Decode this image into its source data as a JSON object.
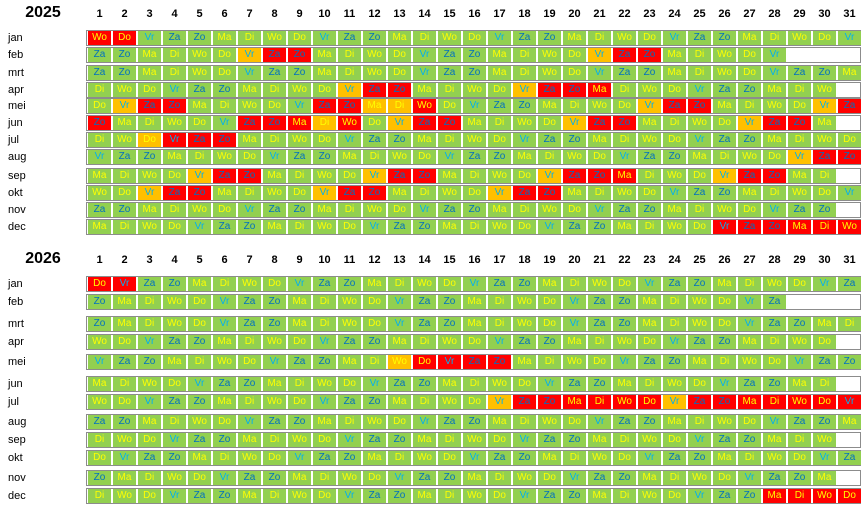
{
  "calendars": [
    {
      "year": "2025",
      "months": [
        {
          "name": "jan",
          "days": [
            "Wo",
            "Do",
            "Vr",
            "Za",
            "Zo",
            "Ma",
            "Di",
            "Wo",
            "Do",
            "Vr",
            "Za",
            "Zo",
            "Ma",
            "Di",
            "Wo",
            "Do",
            "Vr",
            "Za",
            "Zo",
            "Ma",
            "Di",
            "Wo",
            "Do",
            "Vr",
            "Za",
            "Zo",
            "Ma",
            "Di",
            "Wo",
            "Do",
            "Vr"
          ],
          "red": [
            1,
            2
          ],
          "orange": []
        },
        {
          "name": "feb",
          "days": [
            "Za",
            "Zo",
            "Ma",
            "Di",
            "Wo",
            "Do",
            "Vr",
            "Za",
            "Zo",
            "Ma",
            "Di",
            "Wo",
            "Do",
            "Vr",
            "Za",
            "Zo",
            "Ma",
            "Di",
            "Wo",
            "Do",
            "Vr",
            "Za",
            "Zo",
            "Ma",
            "Di",
            "Wo",
            "Do",
            "Vr"
          ],
          "red": [
            8,
            9,
            22,
            23
          ],
          "orange": [
            7,
            21
          ]
        },
        {
          "name": "mrt",
          "days": [
            "Za",
            "Zo",
            "Ma",
            "Di",
            "Wo",
            "Do",
            "Vr",
            "Za",
            "Zo",
            "Ma",
            "Di",
            "Wo",
            "Do",
            "Vr",
            "Za",
            "Zo",
            "Ma",
            "Di",
            "Wo",
            "Do",
            "Vr",
            "Za",
            "Zo",
            "Ma",
            "Di",
            "Wo",
            "Do",
            "Vr",
            "Za",
            "Zo",
            "Ma"
          ],
          "red": [],
          "orange": []
        },
        {
          "name": "apr",
          "days": [
            "Di",
            "Wo",
            "Do",
            "Vr",
            "Za",
            "Zo",
            "Ma",
            "Di",
            "Wo",
            "Do",
            "Vr",
            "Za",
            "Zo",
            "Ma",
            "Di",
            "Wo",
            "Do",
            "Vr",
            "Za",
            "Zo",
            "Ma",
            "Di",
            "Wo",
            "Do",
            "Vr",
            "Za",
            "Zo",
            "Ma",
            "Di",
            "Wo"
          ],
          "red": [
            12,
            13,
            19,
            20,
            21
          ],
          "orange": [
            11,
            18
          ]
        },
        {
          "name": "mei",
          "days": [
            "Do",
            "Vr",
            "Za",
            "Zo",
            "Ma",
            "Di",
            "Wo",
            "Do",
            "Vr",
            "Za",
            "Zo",
            "Ma",
            "Di",
            "Wo",
            "Do",
            "Vr",
            "Za",
            "Zo",
            "Ma",
            "Di",
            "Wo",
            "Do",
            "Vr",
            "Za",
            "Zo",
            "Ma",
            "Di",
            "Wo",
            "Do",
            "Vr",
            "Za"
          ],
          "red": [
            3,
            4,
            10,
            11,
            14,
            24,
            25,
            31
          ],
          "orange": [
            2,
            12,
            13,
            23,
            30
          ]
        },
        {
          "name": "jun",
          "days": [
            "Zo",
            "Ma",
            "Di",
            "Wo",
            "Do",
            "Vr",
            "Za",
            "Zo",
            "Ma",
            "Di",
            "Wo",
            "Do",
            "Vr",
            "Za",
            "Zo",
            "Ma",
            "Di",
            "Wo",
            "Do",
            "Vr",
            "Za",
            "Zo",
            "Ma",
            "Di",
            "Wo",
            "Do",
            "Vr",
            "Za",
            "Zo",
            "Ma"
          ],
          "red": [
            1,
            7,
            8,
            9,
            11,
            14,
            15,
            21,
            22,
            28,
            29
          ],
          "orange": [
            10,
            13,
            20,
            27
          ]
        },
        {
          "name": "jul",
          "days": [
            "Di",
            "Wo",
            "Do",
            "Vr",
            "Za",
            "Zo",
            "Ma",
            "Di",
            "Wo",
            "Do",
            "Vr",
            "Za",
            "Zo",
            "Ma",
            "Di",
            "Wo",
            "Do",
            "Vr",
            "Za",
            "Zo",
            "Ma",
            "Di",
            "Wo",
            "Do",
            "Vr",
            "Za",
            "Zo",
            "Ma",
            "Di",
            "Wo",
            "Do"
          ],
          "red": [
            4,
            5,
            6
          ],
          "orange": [
            3
          ]
        },
        {
          "name": "aug",
          "days": [
            "Vr",
            "Za",
            "Zo",
            "Ma",
            "Di",
            "Wo",
            "Do",
            "Vr",
            "Za",
            "Zo",
            "Ma",
            "Di",
            "Wo",
            "Do",
            "Vr",
            "Za",
            "Zo",
            "Ma",
            "Di",
            "Wo",
            "Do",
            "Vr",
            "Za",
            "Zo",
            "Ma",
            "Di",
            "Wo",
            "Do",
            "Vr",
            "Za",
            "Zo"
          ],
          "red": [
            30,
            31
          ],
          "orange": [
            29
          ]
        },
        {
          "name": "sep",
          "days": [
            "Ma",
            "Di",
            "Wo",
            "Do",
            "Vr",
            "Za",
            "Zo",
            "Ma",
            "Di",
            "Wo",
            "Do",
            "Vr",
            "Za",
            "Zo",
            "Ma",
            "Di",
            "Wo",
            "Do",
            "Vr",
            "Za",
            "Zo",
            "Ma",
            "Di",
            "Wo",
            "Do",
            "Vr",
            "Za",
            "Zo",
            "Ma",
            "Di"
          ],
          "red": [
            6,
            7,
            13,
            14,
            20,
            21,
            22,
            27,
            28
          ],
          "orange": [
            5,
            12,
            19,
            26
          ]
        },
        {
          "name": "okt",
          "days": [
            "Wo",
            "Do",
            "Vr",
            "Za",
            "Zo",
            "Ma",
            "Di",
            "Wo",
            "Do",
            "Vr",
            "Za",
            "Zo",
            "Ma",
            "Di",
            "Wo",
            "Do",
            "Vr",
            "Za",
            "Zo",
            "Ma",
            "Di",
            "Wo",
            "Do",
            "Vr",
            "Za",
            "Zo",
            "Ma",
            "Di",
            "Wo",
            "Do",
            "Vr"
          ],
          "red": [
            4,
            5,
            11,
            12,
            18,
            19
          ],
          "orange": [
            3,
            10,
            17
          ]
        },
        {
          "name": "nov",
          "days": [
            "Za",
            "Zo",
            "Ma",
            "Di",
            "Wo",
            "Do",
            "Vr",
            "Za",
            "Zo",
            "Ma",
            "Di",
            "Wo",
            "Do",
            "Vr",
            "Za",
            "Zo",
            "Ma",
            "Di",
            "Wo",
            "Do",
            "Vr",
            "Za",
            "Zo",
            "Ma",
            "Di",
            "Wo",
            "Do",
            "Vr",
            "Za",
            "Zo"
          ],
          "red": [],
          "orange": []
        },
        {
          "name": "dec",
          "days": [
            "Ma",
            "Di",
            "Wo",
            "Do",
            "Vr",
            "Za",
            "Zo",
            "Ma",
            "Di",
            "Wo",
            "Do",
            "Vr",
            "Za",
            "Zo",
            "Ma",
            "Di",
            "Wo",
            "Do",
            "Vr",
            "Za",
            "Zo",
            "Ma",
            "Di",
            "Wo",
            "Do",
            "Vr",
            "Za",
            "Zo",
            "Ma",
            "Di",
            "Wo"
          ],
          "red": [
            26,
            27,
            28,
            29,
            30,
            31
          ],
          "orange": []
        }
      ]
    },
    {
      "year": "2026",
      "months": [
        {
          "name": "jan",
          "days": [
            "Do",
            "Vr",
            "Za",
            "Zo",
            "Ma",
            "Di",
            "Wo",
            "Do",
            "Vr",
            "Za",
            "Zo",
            "Ma",
            "Di",
            "Wo",
            "Do",
            "Vr",
            "Za",
            "Zo",
            "Ma",
            "Di",
            "Wo",
            "Do",
            "Vr",
            "Za",
            "Zo",
            "Ma",
            "Di",
            "Wo",
            "Do",
            "Vr",
            "Za"
          ],
          "red": [
            1,
            2
          ],
          "orange": []
        },
        {
          "name": "feb",
          "days": [
            "Zo",
            "Ma",
            "Di",
            "Wo",
            "Do",
            "Vr",
            "Za",
            "Zo",
            "Ma",
            "Di",
            "Wo",
            "Do",
            "Vr",
            "Za",
            "Zo",
            "Ma",
            "Di",
            "Wo",
            "Do",
            "Vr",
            "Za",
            "Zo",
            "Ma",
            "Di",
            "Wo",
            "Do",
            "Vr",
            "Za"
          ],
          "red": [],
          "orange": []
        },
        {
          "name": "mrt",
          "days": [
            "Zo",
            "Ma",
            "Di",
            "Wo",
            "Do",
            "Vr",
            "Za",
            "Zo",
            "Ma",
            "Di",
            "Wo",
            "Do",
            "Vr",
            "Za",
            "Zo",
            "Ma",
            "Di",
            "Wo",
            "Do",
            "Vr",
            "Za",
            "Zo",
            "Ma",
            "Di",
            "Wo",
            "Do",
            "Vr",
            "Za",
            "Zo",
            "Ma",
            "Di"
          ],
          "red": [],
          "orange": []
        },
        {
          "name": "apr",
          "days": [
            "Wo",
            "Do",
            "Vr",
            "Za",
            "Zo",
            "Ma",
            "Di",
            "Wo",
            "Do",
            "Vr",
            "Za",
            "Zo",
            "Ma",
            "Di",
            "Wo",
            "Do",
            "Vr",
            "Za",
            "Zo",
            "Ma",
            "Di",
            "Wo",
            "Do",
            "Vr",
            "Za",
            "Zo",
            "Ma",
            "Di",
            "Wo",
            "Do"
          ],
          "red": [],
          "orange": []
        },
        {
          "name": "mei",
          "days": [
            "Vr",
            "Za",
            "Zo",
            "Ma",
            "Di",
            "Wo",
            "Do",
            "Vr",
            "Za",
            "Zo",
            "Ma",
            "Di",
            "Wo",
            "Do",
            "Vr",
            "Za",
            "Zo",
            "Ma",
            "Di",
            "Wo",
            "Do",
            "Vr",
            "Za",
            "Zo",
            "Ma",
            "Di",
            "Wo",
            "Do",
            "Vr",
            "Za",
            "Zo"
          ],
          "red": [
            14,
            15,
            16,
            17
          ],
          "orange": [
            13
          ]
        },
        {
          "name": "jun",
          "days": [
            "Ma",
            "Di",
            "Wo",
            "Do",
            "Vr",
            "Za",
            "Zo",
            "Ma",
            "Di",
            "Wo",
            "Do",
            "Vr",
            "Za",
            "Zo",
            "Ma",
            "Di",
            "Wo",
            "Do",
            "Vr",
            "Za",
            "Zo",
            "Ma",
            "Di",
            "Wo",
            "Do",
            "Vr",
            "Za",
            "Zo",
            "Ma",
            "Di"
          ],
          "red": [],
          "orange": []
        },
        {
          "name": "jul",
          "days": [
            "Wo",
            "Do",
            "Vr",
            "Za",
            "Zo",
            "Ma",
            "Di",
            "Wo",
            "Do",
            "Vr",
            "Za",
            "Zo",
            "Ma",
            "Di",
            "Wo",
            "Do",
            "Vr",
            "Za",
            "Zo",
            "Ma",
            "Di",
            "Wo",
            "Do",
            "Vr",
            "Za",
            "Zo",
            "Ma",
            "Di",
            "Wo",
            "Do",
            "Vr"
          ],
          "red": [
            18,
            19,
            20,
            21,
            22,
            23,
            25,
            26,
            27,
            28,
            29,
            30,
            31
          ],
          "orange": [
            17,
            24
          ]
        },
        {
          "name": "aug",
          "days": [
            "Za",
            "Zo",
            "Ma",
            "Di",
            "Wo",
            "Do",
            "Vr",
            "Za",
            "Zo",
            "Ma",
            "Di",
            "Wo",
            "Do",
            "Vr",
            "Za",
            "Zo",
            "Ma",
            "Di",
            "Wo",
            "Do",
            "Vr",
            "Za",
            "Zo",
            "Ma",
            "Di",
            "Wo",
            "Do",
            "Vr",
            "Za",
            "Zo",
            "Ma"
          ],
          "red": [],
          "orange": []
        },
        {
          "name": "sep",
          "days": [
            "Di",
            "Wo",
            "Do",
            "Vr",
            "Za",
            "Zo",
            "Ma",
            "Di",
            "Wo",
            "Do",
            "Vr",
            "Za",
            "Zo",
            "Ma",
            "Di",
            "Wo",
            "Do",
            "Vr",
            "Za",
            "Zo",
            "Ma",
            "Di",
            "Wo",
            "Do",
            "Vr",
            "Za",
            "Zo",
            "Ma",
            "Di",
            "Wo"
          ],
          "red": [],
          "orange": []
        },
        {
          "name": "okt",
          "days": [
            "Do",
            "Vr",
            "Za",
            "Zo",
            "Ma",
            "Di",
            "Wo",
            "Do",
            "Vr",
            "Za",
            "Zo",
            "Ma",
            "Di",
            "Wo",
            "Do",
            "Vr",
            "Za",
            "Zo",
            "Ma",
            "Di",
            "Wo",
            "Do",
            "Vr",
            "Za",
            "Zo",
            "Ma",
            "Di",
            "Wo",
            "Do",
            "Vr",
            "Za"
          ],
          "red": [],
          "orange": []
        },
        {
          "name": "nov",
          "days": [
            "Zo",
            "Ma",
            "Di",
            "Wo",
            "Do",
            "Vr",
            "Za",
            "Zo",
            "Ma",
            "Di",
            "Wo",
            "Do",
            "Vr",
            "Za",
            "Zo",
            "Ma",
            "Di",
            "Wo",
            "Do",
            "Vr",
            "Za",
            "Zo",
            "Ma",
            "Di",
            "Wo",
            "Do",
            "Vr",
            "Za",
            "Zo",
            "Ma"
          ],
          "red": [],
          "orange": []
        },
        {
          "name": "dec",
          "days": [
            "Di",
            "Wo",
            "Do",
            "Vr",
            "Za",
            "Zo",
            "Ma",
            "Di",
            "Wo",
            "Do",
            "Vr",
            "Za",
            "Zo",
            "Ma",
            "Di",
            "Wo",
            "Do",
            "Vr",
            "Za",
            "Zo",
            "Ma",
            "Di",
            "Wo",
            "Do",
            "Vr",
            "Za",
            "Zo",
            "Ma",
            "Di",
            "Wo",
            "Do"
          ],
          "red": [
            28,
            29,
            30,
            31
          ],
          "orange": []
        }
      ]
    }
  ],
  "day_numbers": [
    "1",
    "2",
    "3",
    "4",
    "5",
    "6",
    "7",
    "8",
    "9",
    "10",
    "11",
    "12",
    "13",
    "14",
    "15",
    "16",
    "17",
    "18",
    "19",
    "20",
    "21",
    "22",
    "23",
    "24",
    "25",
    "26",
    "27",
    "28",
    "29",
    "30",
    "31"
  ],
  "colors": {
    "cell": "#92d050",
    "holiday": "#ff0000",
    "bridge": "#ffc000",
    "weekday_text": "#ffff00",
    "vr_text": "#00b0f0",
    "weekend_text": "#0070c0"
  }
}
